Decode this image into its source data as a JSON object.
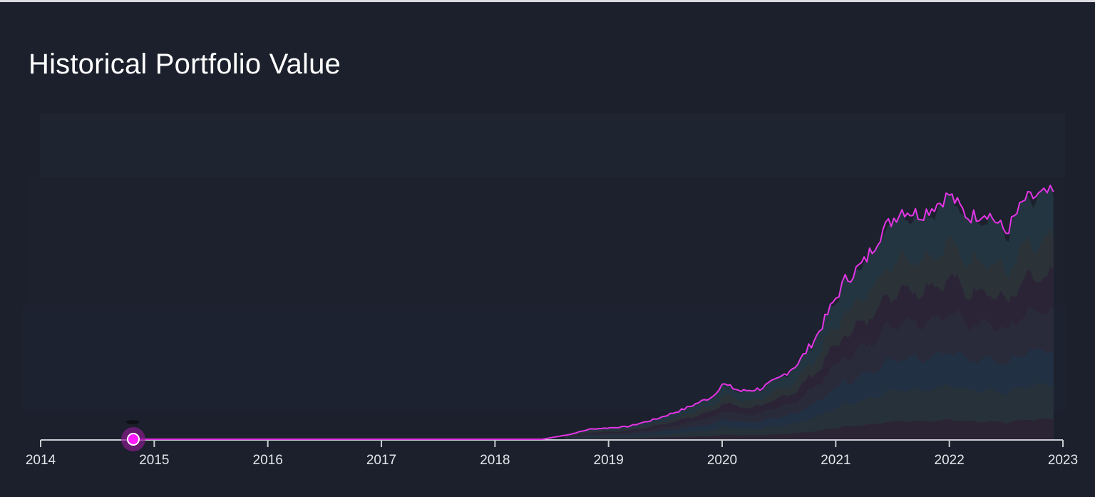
{
  "header": {
    "title": "Historical Portfolio Value"
  },
  "colors": {
    "background": "#1b202c",
    "plot_band": "#1f2431",
    "line": "#e535e6",
    "marker": "#ff1aff",
    "axis": "#c9cbd1",
    "tick_label": "#e4e6ea",
    "stack_layers": [
      "#2b2435",
      "#27313a",
      "#223044",
      "#2a2b3a",
      "#2b2437",
      "#2b3238",
      "#233541"
    ]
  },
  "chart_data": {
    "type": "area",
    "title": "Historical Portfolio Value",
    "xlabel": "",
    "ylabel": "",
    "x_ticks": [
      "2014",
      "2015",
      "2016",
      "2017",
      "2018",
      "2019",
      "2020",
      "2021",
      "2022",
      "2023"
    ],
    "xlim": [
      "2014-01",
      "2023-01"
    ],
    "grid": false,
    "legend": "none",
    "y_axis_visible": false,
    "note": "Stacked area of holdings with total portfolio value line (magenta); values relative, y-axis unlabeled (0 = baseline, 100 = peak).",
    "series": [
      {
        "name": "Total Portfolio Value",
        "x": [
          "2014-10",
          "2015-06",
          "2016-06",
          "2017-06",
          "2018-06",
          "2018-09",
          "2018-11",
          "2019-03",
          "2019-06",
          "2019-09",
          "2019-12",
          "2020-01",
          "2020-03",
          "2020-05",
          "2020-07",
          "2020-09",
          "2020-11",
          "2021-01",
          "2021-02",
          "2021-04",
          "2021-06",
          "2021-08",
          "2021-10",
          "2021-12",
          "2022-01",
          "2022-03",
          "2022-05",
          "2022-07",
          "2022-09",
          "2022-11",
          "2022-12"
        ],
        "values": [
          0,
          0,
          0,
          0,
          0,
          2,
          4,
          5,
          8,
          12,
          17,
          22,
          19,
          20,
          24,
          30,
          41,
          56,
          63,
          70,
          83,
          91,
          89,
          94,
          97,
          88,
          90,
          82,
          95,
          97,
          98
        ]
      }
    ],
    "marker": {
      "x": "2014-10",
      "value": 0
    }
  }
}
